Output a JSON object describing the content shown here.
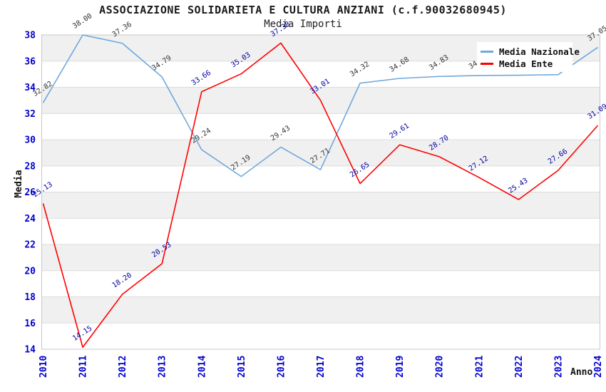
{
  "chart_data": {
    "type": "line",
    "title": "ASSOCIAZIONE SOLIDARIETA E CULTURA ANZIANI (c.f.90032680945)",
    "subtitle": "Media Importi",
    "xlabel": "Anno",
    "ylabel": "Media",
    "categories": [
      "2010",
      "2011",
      "2012",
      "2013",
      "2014",
      "2015",
      "2016",
      "2017",
      "2018",
      "2019",
      "2020",
      "2021",
      "2022",
      "2023",
      "2024"
    ],
    "series": [
      {
        "name": "Media Nazionale",
        "color": "#6FA8DC",
        "label_color": "#333333",
        "values": [
          32.82,
          38.0,
          37.36,
          34.79,
          29.24,
          27.19,
          29.43,
          27.71,
          34.32,
          34.68,
          34.83,
          34.9,
          34.92,
          34.97,
          37.05
        ]
      },
      {
        "name": "Media Ente",
        "color": "#FF0000",
        "label_color": "#0000A0",
        "values": [
          25.13,
          14.15,
          18.2,
          20.53,
          33.66,
          35.03,
          37.38,
          33.01,
          26.65,
          29.61,
          28.7,
          27.12,
          25.43,
          27.66,
          31.09
        ]
      }
    ],
    "ylim": [
      14,
      38
    ],
    "ytick_step": 2,
    "grid": "horizontal-bands",
    "band_colors": [
      "#F0F0F0",
      "#FFFFFF"
    ],
    "gridline_color": "#DCDCDC",
    "plot_border_color": "#C8C8C8",
    "axis_tick_color": "#0000CC",
    "legend": {
      "position": "top-right",
      "entries": [
        "Media Nazionale",
        "Media Ente"
      ]
    }
  }
}
